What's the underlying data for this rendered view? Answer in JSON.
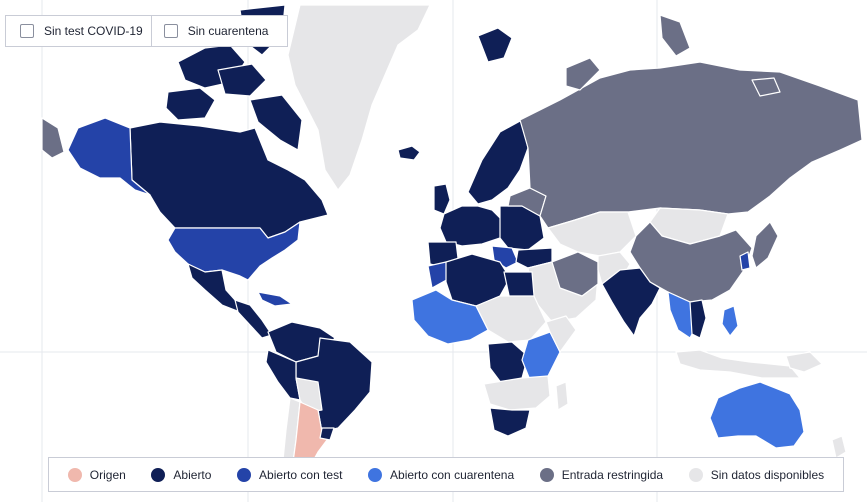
{
  "filters": [
    {
      "label": "Sin test COVID-19",
      "checked": false
    },
    {
      "label": "Sin cuarentena",
      "checked": false
    }
  ],
  "legend": [
    {
      "key": "origen",
      "label": "Origen",
      "color": "#f0b8ad"
    },
    {
      "key": "abierto",
      "label": "Abierto",
      "color": "#0f1f56"
    },
    {
      "key": "abierto_test",
      "label": "Abierto con test",
      "color": "#2443a8"
    },
    {
      "key": "abierto_cuarentena",
      "label": "Abierto con cuarentena",
      "color": "#3f74e0"
    },
    {
      "key": "restringida",
      "label": "Entrada restringida",
      "color": "#6b6f86"
    },
    {
      "key": "sin_datos",
      "label": "Sin datos disponibles",
      "color": "#e6e6e8"
    }
  ]
}
